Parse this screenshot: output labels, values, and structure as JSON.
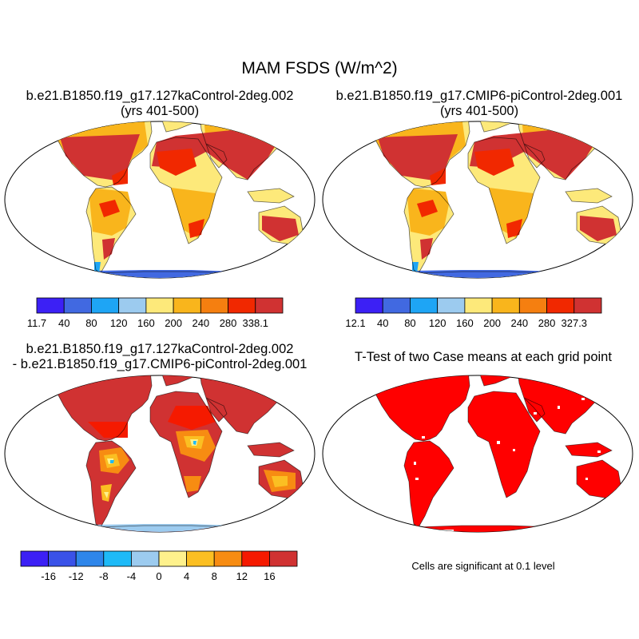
{
  "title": "MAM FSDS (W/m^2)",
  "panels": [
    {
      "title_line1": "b.e21.B1850.f19_g17.127kaControl-2deg.002",
      "title_line2": "(yrs 401-500)"
    },
    {
      "title_line1": "b.e21.B1850.f19_g17.CMIP6-piControl-2deg.001",
      "title_line2": "(yrs 401-500)"
    },
    {
      "title_line1": "b.e21.B1850.f19_g17.127kaControl-2deg.002",
      "title_line2": "- b.e21.B1850.f19_g17.CMIP6-piControl-2deg.001"
    },
    {
      "title_line1": "T-Test of two Case means at each grid point",
      "title_line2": ""
    }
  ],
  "colorbars": [
    {
      "labels": [
        "11.7",
        "40",
        "80",
        "120",
        "160",
        "200",
        "240",
        "280",
        "338.1"
      ],
      "colors": [
        "#3c20f5",
        "#4169e1",
        "#1ea5f5",
        "#9ccbef",
        "#fde97a",
        "#f9b51c",
        "#f57f10",
        "#f12800",
        "#d03232"
      ]
    },
    {
      "labels": [
        "12.1",
        "40",
        "80",
        "120",
        "160",
        "200",
        "240",
        "280",
        "327.3"
      ],
      "colors": [
        "#3c20f5",
        "#4169e1",
        "#1ea5f5",
        "#9ccbef",
        "#fde97a",
        "#f9b51c",
        "#f57f10",
        "#f12800",
        "#d03232"
      ]
    },
    {
      "labels": [
        "-16",
        "-12",
        "-8",
        "-4",
        "0",
        "4",
        "8",
        "12",
        "16"
      ],
      "colors": [
        "#3c20f5",
        "#3a52e8",
        "#2e86ea",
        "#1ebaf7",
        "#9ccbef",
        "#fef18c",
        "#fbbf22",
        "#f78c12",
        "#f51a00",
        "#d03232"
      ]
    }
  ],
  "significance_note": "Cells are significant at 0.1 level",
  "colors": {
    "significant": "#ff0000",
    "ocean": "#ffffff",
    "coast": "#000000"
  }
}
